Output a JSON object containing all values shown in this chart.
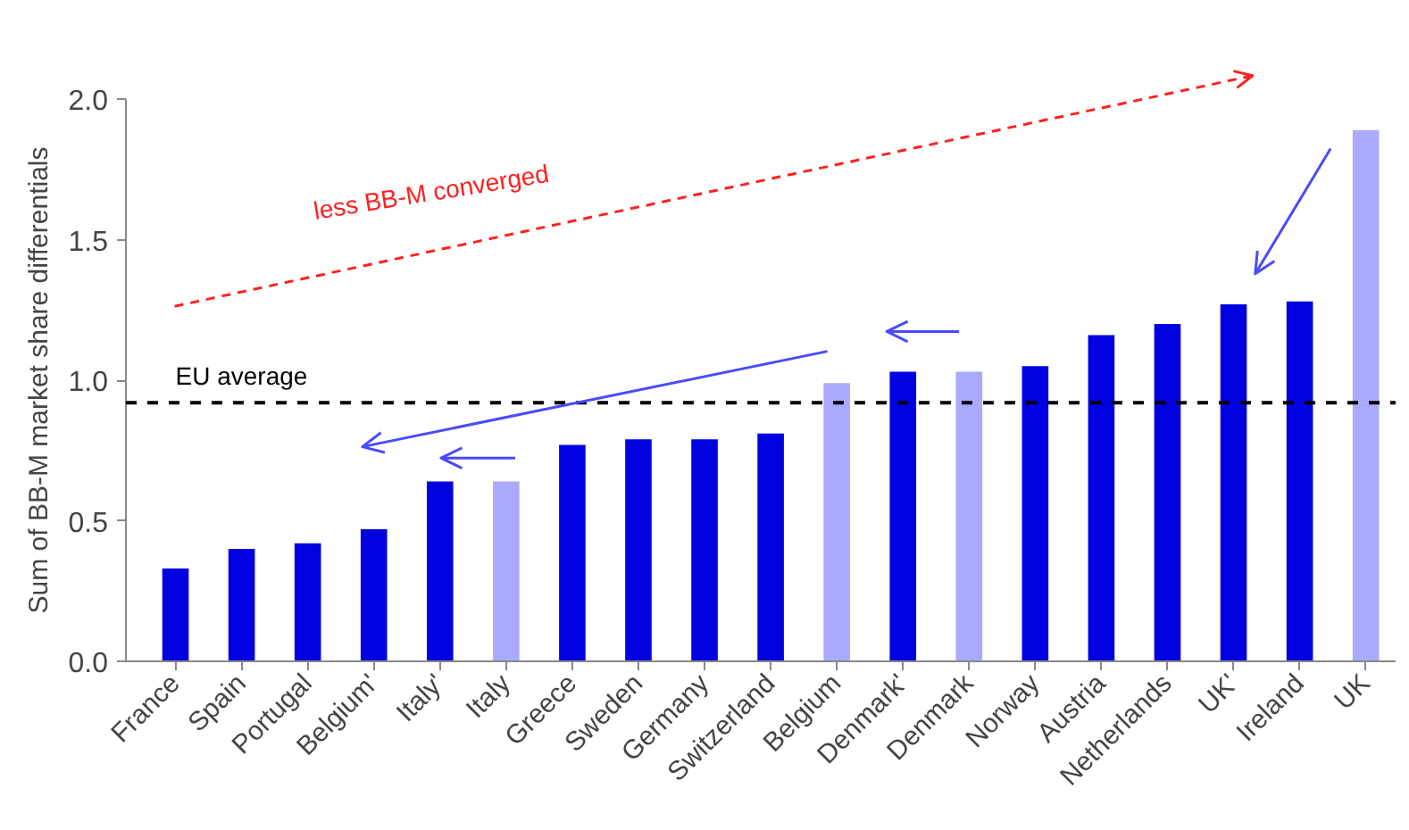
{
  "chart_data": {
    "type": "bar",
    "categories": [
      "France",
      "Spain",
      "Portugal",
      "Belgium'",
      "Italy'",
      "Italy",
      "Greece",
      "Sweden",
      "Germany",
      "Switzerland",
      "Belgium",
      "Denmark'",
      "Denmark",
      "Norway",
      "Austria",
      "Netherlands",
      "UK'",
      "Ireland",
      "UK"
    ],
    "values": [
      0.33,
      0.4,
      0.42,
      0.47,
      0.64,
      0.64,
      0.77,
      0.79,
      0.79,
      0.81,
      0.99,
      1.03,
      1.03,
      1.05,
      1.16,
      1.2,
      1.27,
      1.28,
      1.89
    ],
    "colors": [
      "#0000e0",
      "#0000e0",
      "#0000e0",
      "#0000e0",
      "#0000e0",
      "#aaaaff",
      "#0000e0",
      "#0000e0",
      "#0000e0",
      "#0000e0",
      "#aaaaff",
      "#0000e0",
      "#aaaaff",
      "#0000e0",
      "#0000e0",
      "#0000e0",
      "#0000e0",
      "#0000e0",
      "#aaaaff"
    ],
    "ylabel": "Sum of BB-M market share differentials",
    "ylim": [
      0,
      2
    ],
    "yticks": [
      {
        "value": 0,
        "label": "0.0"
      },
      {
        "value": 0.5,
        "label": "0.5"
      },
      {
        "value": 1,
        "label": "1.0"
      },
      {
        "value": 1.5,
        "label": "1.5"
      },
      {
        "value": 2,
        "label": "2.0"
      }
    ],
    "ref_lines": [
      {
        "axis": "y",
        "value": 0.92,
        "label": "EU average",
        "color": "#000000",
        "line_style": "dashed"
      }
    ],
    "annotations": [
      "less BB-M converged"
    ],
    "grid": false
  }
}
